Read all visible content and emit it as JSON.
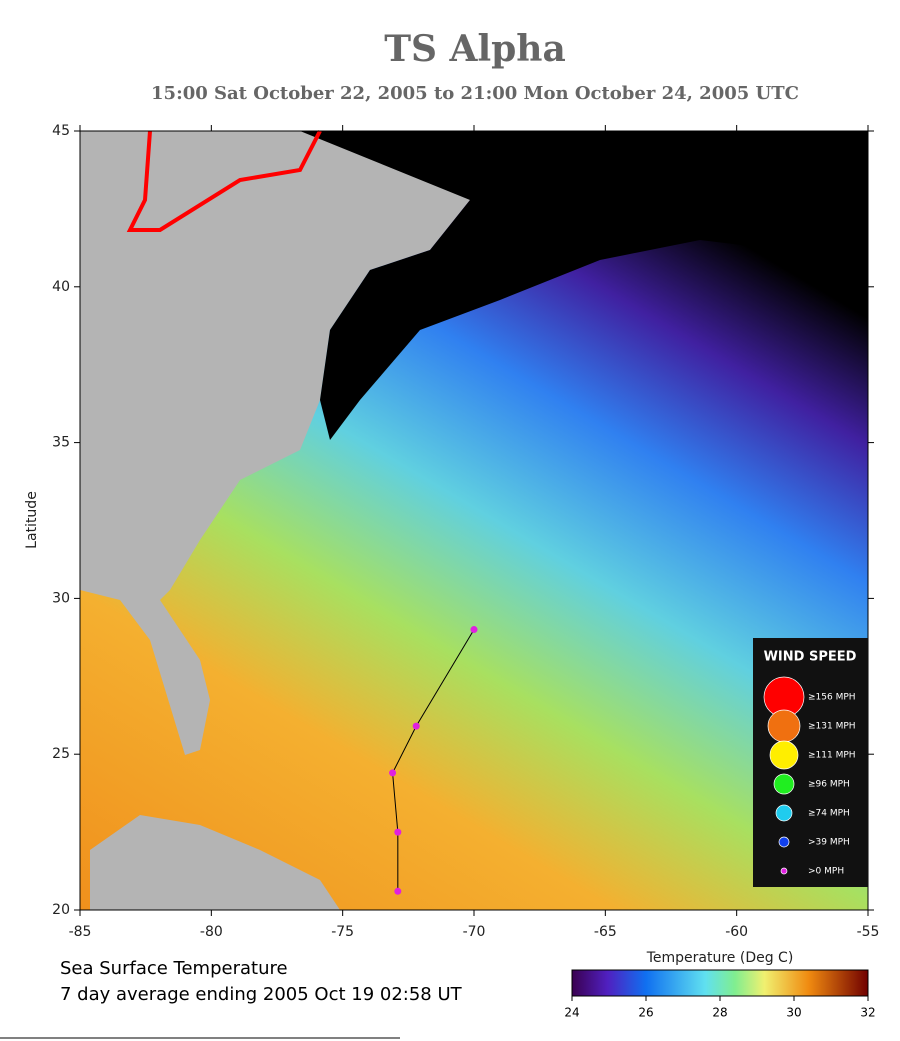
{
  "title": "TS Alpha",
  "subtitle": "15:00 Sat October 22, 2005 to 21:00 Mon October 24, 2005  UTC",
  "map": {
    "xlim": [
      -85,
      -55
    ],
    "ylim": [
      20,
      45
    ],
    "xticks": [
      -85,
      -80,
      -75,
      -70,
      -65,
      -60,
      -55
    ],
    "yticks": [
      20,
      25,
      30,
      35,
      40,
      45
    ],
    "ylabel": "Latitude"
  },
  "track": {
    "color": "#e020e0",
    "lon": [
      -70.0,
      -72.2,
      -73.1,
      -72.9,
      -72.9
    ],
    "lat": [
      29.0,
      25.9,
      24.4,
      22.5,
      20.6
    ]
  },
  "legend": {
    "title": "WIND SPEED",
    "entries": [
      {
        "label": "≥156 MPH",
        "color": "#ff0000"
      },
      {
        "label": "≥131 MPH",
        "color": "#f07010"
      },
      {
        "label": "≥111 MPH",
        "color": "#ffee00"
      },
      {
        "label": "≥96 MPH",
        "color": "#20ee20"
      },
      {
        "label": "≥74 MPH",
        "color": "#20ccee"
      },
      {
        "label": ">39 MPH",
        "color": "#1040ee"
      },
      {
        "label": ">0 MPH",
        "color": "#e020e0"
      }
    ]
  },
  "colorbar": {
    "label": "Temperature (Deg C)",
    "lim": [
      24,
      32
    ],
    "ticks": [
      24,
      26,
      28,
      30,
      32
    ]
  },
  "caption": [
    "Sea Surface Temperature",
    "7 day average ending 2005 Oct 19 02:58 UT"
  ]
}
